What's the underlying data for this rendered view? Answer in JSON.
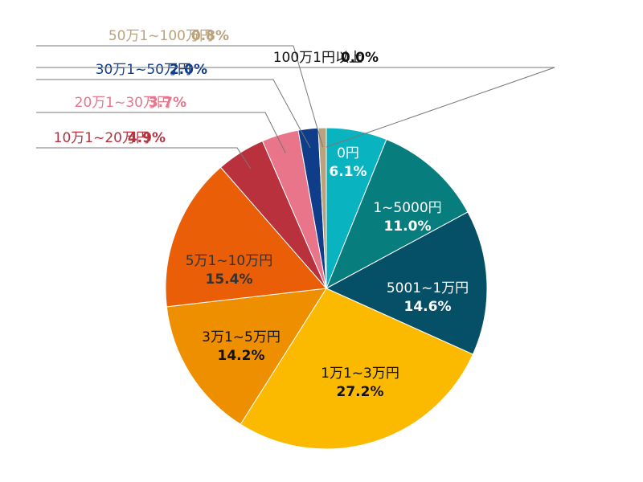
{
  "chart_data": {
    "type": "pie",
    "title": "",
    "start_angle_deg": 0,
    "direction": "clockwise",
    "slices": [
      {
        "label": "0円",
        "value": 6.1,
        "value_text": "6.1%",
        "color": "#0ab3c0",
        "label_color": "#ffffff",
        "pct_color": "#ffffff",
        "placement": "inside"
      },
      {
        "label": "1~5000円",
        "value": 11.0,
        "value_text": "11.0%",
        "color": "#087d7d",
        "label_color": "#ffffff",
        "pct_color": "#ffffff",
        "placement": "inside"
      },
      {
        "label": "5001~1万円",
        "value": 14.6,
        "value_text": "14.6%",
        "color": "#054f67",
        "label_color": "#ffffff",
        "pct_color": "#ffffff",
        "placement": "inside"
      },
      {
        "label": "1万1~3万円",
        "value": 27.2,
        "value_text": "27.2%",
        "color": "#fbb900",
        "label_color": "#111111",
        "pct_color": "#111111",
        "placement": "inside"
      },
      {
        "label": "3万1~5万円",
        "value": 14.2,
        "value_text": "14.2%",
        "color": "#ee8f00",
        "label_color": "#111111",
        "pct_color": "#111111",
        "placement": "inside"
      },
      {
        "label": "5万1~10万円",
        "value": 15.4,
        "value_text": "15.4%",
        "color": "#e95e06",
        "label_color": "#333333",
        "pct_color": "#333333",
        "placement": "inside"
      },
      {
        "label": "10万1~20万円",
        "value": 4.9,
        "value_text": "4.9%",
        "color": "#b8313d",
        "label_color": "#b8313d",
        "pct_color": "#b8313d",
        "placement": "outside"
      },
      {
        "label": "20万1~30万円",
        "value": 3.7,
        "value_text": "3.7%",
        "color": "#e8758a",
        "label_color": "#e8758a",
        "pct_color": "#e8758a",
        "placement": "outside"
      },
      {
        "label": "30万1~50万円",
        "value": 2.0,
        "value_text": "2.0%",
        "color": "#0f3d8a",
        "label_color": "#0f3d8a",
        "pct_color": "#0f3d8a",
        "placement": "outside"
      },
      {
        "label": "50万1~100万円",
        "value": 0.8,
        "value_text": "0.8%",
        "color": "#b9a27c",
        "label_color": "#b9a27c",
        "pct_color": "#b9a27c",
        "placement": "outside"
      },
      {
        "label": "100万1円以上",
        "value": 0.0,
        "value_text": "0.0%",
        "color": "#555555",
        "label_color": "#111111",
        "pct_color": "#111111",
        "placement": "outside"
      }
    ]
  }
}
